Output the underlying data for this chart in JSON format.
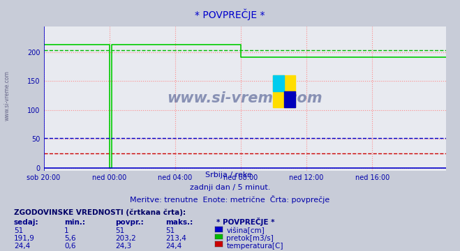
{
  "title": "* POVPREČJE *",
  "subtitle1": "Srbija / reke.",
  "subtitle2": "zadnji dan / 5 minut.",
  "subtitle3": "Meritve: trenutne  Enote: metrične  Črta: povprečje",
  "hist_title": "ZGODOVINSKE VREDNOSTI (črtkana črta):",
  "hist_headers": [
    "sedaj:",
    "min.:",
    "povpr.:",
    "maks.:",
    "* POVPREČJE *"
  ],
  "hist_rows": [
    [
      "51",
      "1",
      "51",
      "51",
      "višina[cm]"
    ],
    [
      "191,9",
      "5,6",
      "203,2",
      "213,4",
      "pretok[m3/s]"
    ],
    [
      "24,4",
      "0,6",
      "24,3",
      "24,4",
      "temperatura[C]"
    ]
  ],
  "legend_colors": [
    "#0000cc",
    "#00bb00",
    "#cc0000"
  ],
  "bg_color": "#c8ccd8",
  "plot_bg": "#e8eaf0",
  "axis_color": "#0000bb",
  "text_color": "#0000aa",
  "title_color": "#0000cc",
  "xlim_start": -4,
  "xlim_end": 20.5,
  "ylim": [
    -5,
    245
  ],
  "yticks": [
    0,
    50,
    100,
    150,
    200
  ],
  "xtick_labels": [
    "sob 20:00",
    "ned 00:00",
    "ned 04:00",
    "ned 08:00",
    "ned 12:00",
    "ned 16:00"
  ],
  "xtick_positions": [
    -4,
    0,
    4,
    8,
    12,
    16
  ],
  "watermark": "www.si-vreme.com",
  "watermark_color": "#2a3a7a",
  "green_avg_y": 203.2,
  "blue_flat_y": 51,
  "red_flat_y": 24.4,
  "red_avg_y": 24.3
}
